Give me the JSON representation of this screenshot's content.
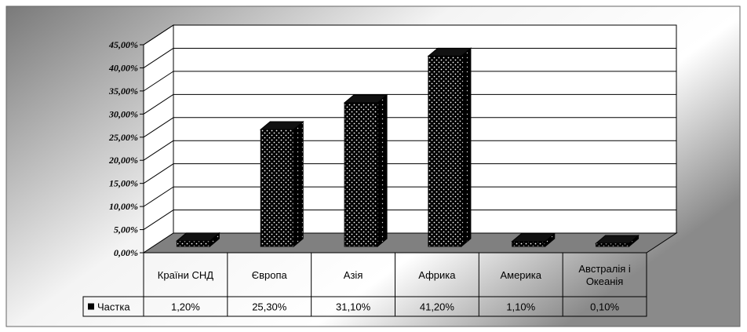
{
  "chart_data": {
    "type": "bar",
    "categories": [
      "Країни СНД",
      "Європа",
      "Азія",
      "Африка",
      "Америка",
      "Австралія і Океанія"
    ],
    "series": [
      {
        "name": "Частка",
        "values": [
          1.2,
          25.3,
          31.1,
          41.2,
          1.1,
          0.1
        ]
      }
    ],
    "value_labels": [
      "1,20%",
      "25,30%",
      "31,10%",
      "41,20%",
      "1,10%",
      "0,10%"
    ],
    "yticks": [
      "0,00%",
      "5,00%",
      "10,00%",
      "15,00%",
      "20,00%",
      "25,00%",
      "30,00%",
      "35,00%",
      "40,00%",
      "45,00%"
    ],
    "ylim": [
      0,
      45
    ],
    "grid": true,
    "legend": "data-table",
    "colors": {
      "bar": "#000000",
      "dots": "#ffffff",
      "floor": "#808080",
      "plot_bg": "#ffffff"
    }
  }
}
